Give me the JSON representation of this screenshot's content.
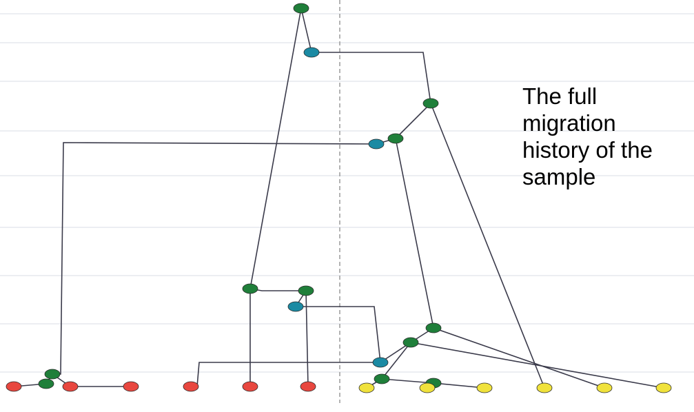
{
  "caption": {
    "lines": [
      "The full",
      "migration",
      "history of the",
      "sample"
    ]
  },
  "colors": {
    "red": "#e8473f",
    "yellow": "#f0e23c",
    "green": "#1f7f3a",
    "blue": "#1b8aa3",
    "edge": "#3a3a4a",
    "divider": "#9a9a9a"
  }
}
